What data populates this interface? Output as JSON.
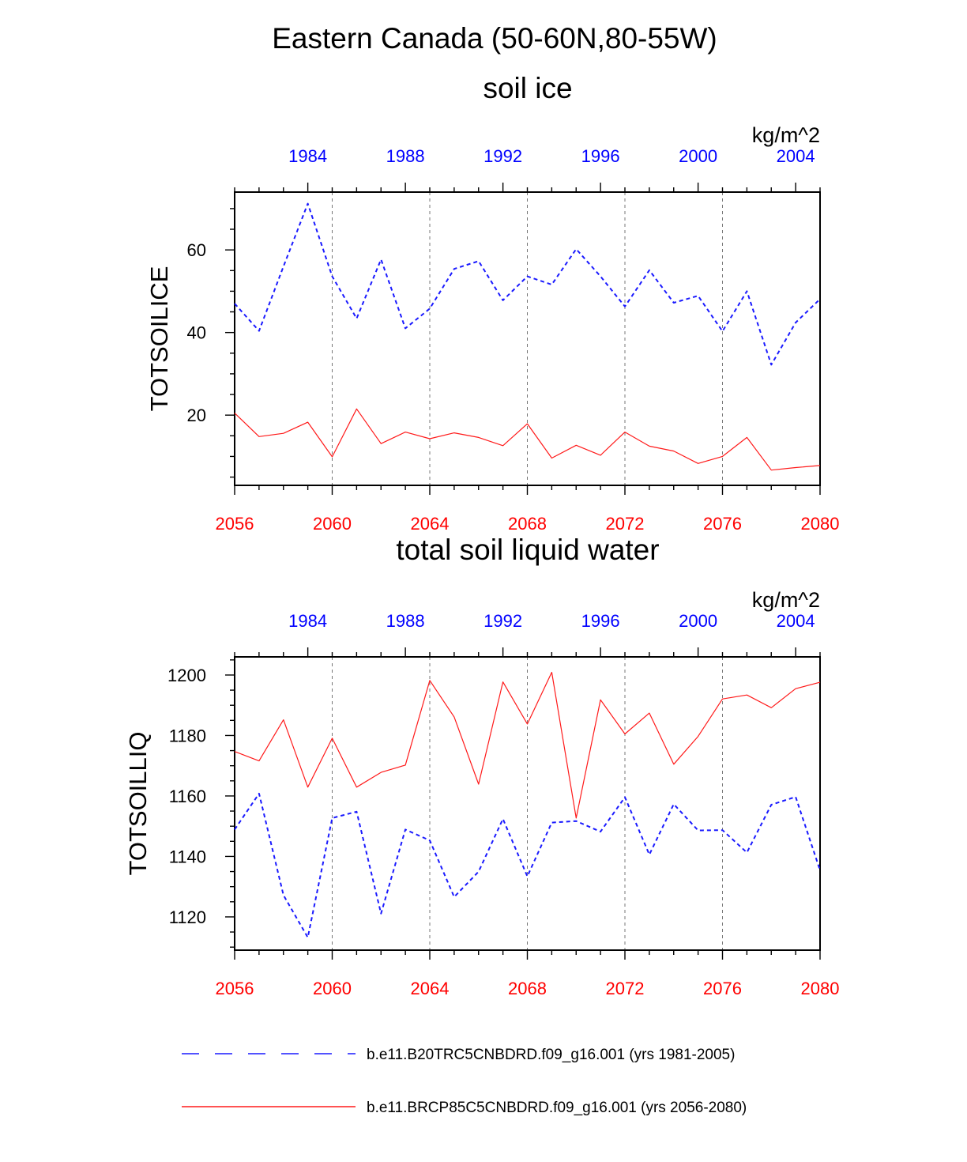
{
  "main_title": "Eastern Canada (50-60N,80-55W)",
  "legend": [
    {
      "label": "b.e11.B20TRC5CNBDRD.f09_g16.001 (yrs 1981-2005)",
      "color": "#1a1aff",
      "style": "dashed"
    },
    {
      "label": "b.e11.BRCP85C5CNBDRD.f09_g16.001 (yrs 2056-2080)",
      "color": "#ff1a1a",
      "style": "solid"
    }
  ],
  "chart_data": [
    {
      "type": "line",
      "title": "soil ice",
      "units": "kg/m^2",
      "ylabel": "TOTSOILICE",
      "ylim": [
        3,
        74
      ],
      "yticks": [
        20,
        40,
        60
      ],
      "yticklabels": [
        "20",
        "40",
        "60"
      ],
      "x_bottom": {
        "range": [
          2056,
          2080
        ],
        "ticks": [
          2056,
          2060,
          2064,
          2068,
          2072,
          2076,
          2080
        ],
        "color": "#ff0000"
      },
      "x_top": {
        "range": [
          1981,
          2005
        ],
        "ticks": [
          1984,
          1988,
          1992,
          1996,
          2000,
          2004
        ],
        "color": "#0000ff"
      },
      "grid_x": [
        2060,
        2064,
        2068,
        2072,
        2076
      ],
      "series": [
        {
          "color": "#ff1a1a",
          "style": "solid",
          "x": [
            2056,
            2057,
            2058,
            2059,
            2060,
            2061,
            2062,
            2063,
            2064,
            2065,
            2066,
            2067,
            2068,
            2069,
            2070,
            2071,
            2072,
            2073,
            2074,
            2075,
            2076,
            2077,
            2078,
            2079,
            2080
          ],
          "values": [
            20.5,
            14.8,
            15.6,
            18.3,
            9.9,
            21.5,
            13.1,
            15.9,
            14.3,
            15.7,
            14.6,
            12.6,
            17.9,
            9.6,
            12.7,
            10.3,
            15.9,
            12.5,
            11.3,
            8.3,
            10.0,
            14.6,
            6.7,
            7.3,
            7.8
          ]
        },
        {
          "color": "#1a1aff",
          "style": "dashed",
          "x": [
            1981,
            1982,
            1983,
            1984,
            1985,
            1986,
            1987,
            1988,
            1989,
            1990,
            1991,
            1992,
            1993,
            1994,
            1995,
            1996,
            1997,
            1998,
            1999,
            2000,
            2001,
            2002,
            2003,
            2004,
            2005
          ],
          "values": [
            47.0,
            40.4,
            56.0,
            71.2,
            53.6,
            43.4,
            57.7,
            41.0,
            45.8,
            55.4,
            57.3,
            47.8,
            53.6,
            51.6,
            60.2,
            53.6,
            46.3,
            55.1,
            47.2,
            48.9,
            40.3,
            50.0,
            32.2,
            42.4,
            48.1
          ]
        }
      ]
    },
    {
      "type": "line",
      "title": "total soil liquid water",
      "units": "kg/m^2",
      "ylabel": "TOTSOILLIQ",
      "ylim": [
        1109,
        1206
      ],
      "yticks": [
        1120,
        1140,
        1160,
        1180,
        1200
      ],
      "yticklabels": [
        "1120",
        "1140",
        "1160",
        "1180",
        "1200"
      ],
      "x_bottom": {
        "range": [
          2056,
          2080
        ],
        "ticks": [
          2056,
          2060,
          2064,
          2068,
          2072,
          2076,
          2080
        ],
        "color": "#ff0000"
      },
      "x_top": {
        "range": [
          1981,
          2005
        ],
        "ticks": [
          1984,
          1988,
          1992,
          1996,
          2000,
          2004
        ],
        "color": "#0000ff"
      },
      "grid_x": [
        2060,
        2064,
        2068,
        2072,
        2076
      ],
      "series": [
        {
          "color": "#ff1a1a",
          "style": "solid",
          "x": [
            2056,
            2057,
            2058,
            2059,
            2060,
            2061,
            2062,
            2063,
            2064,
            2065,
            2066,
            2067,
            2068,
            2069,
            2070,
            2071,
            2072,
            2073,
            2074,
            2075,
            2076,
            2077,
            2078,
            2079,
            2080
          ],
          "values": [
            1174.7,
            1171.6,
            1185.2,
            1162.9,
            1179.1,
            1162.9,
            1167.8,
            1170.2,
            1198.2,
            1186.1,
            1163.9,
            1197.7,
            1183.8,
            1200.9,
            1152.7,
            1191.8,
            1180.5,
            1187.4,
            1170.5,
            1179.7,
            1192.1,
            1193.4,
            1189.2,
            1195.5,
            1197.6
          ]
        },
        {
          "color": "#1a1aff",
          "style": "dashed",
          "x": [
            1981,
            1982,
            1983,
            1984,
            1985,
            1986,
            1987,
            1988,
            1989,
            1990,
            1991,
            1992,
            1993,
            1994,
            1995,
            1996,
            1997,
            1998,
            1999,
            2000,
            2001,
            2002,
            2003,
            2004,
            2005
          ],
          "values": [
            1148.9,
            1160.8,
            1127.2,
            1113.2,
            1152.7,
            1154.8,
            1121.1,
            1148.9,
            1145.3,
            1126.6,
            1135.0,
            1152.4,
            1133.4,
            1151.2,
            1151.7,
            1148.2,
            1159.6,
            1140.6,
            1157.3,
            1148.6,
            1148.7,
            1141.3,
            1157.1,
            1159.7,
            1135.4
          ]
        }
      ]
    }
  ]
}
